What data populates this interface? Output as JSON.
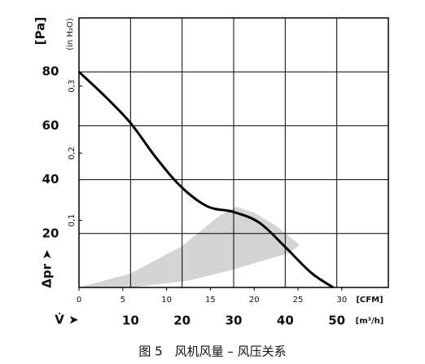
{
  "chart_data": {
    "type": "line",
    "x": [
      0,
      5,
      10,
      15,
      20,
      25,
      30,
      35,
      40,
      45,
      49.3
    ],
    "series": [
      {
        "color": "#000000",
        "values": [
          80,
          71,
          61,
          48,
          37,
          30,
          28,
          24,
          15,
          5.5,
          0
        ]
      }
    ],
    "xlim": [
      0,
      60
    ],
    "xticks": [
      10,
      20,
      30,
      40,
      50
    ],
    "xlabel": "[m³/h]",
    "xarrow": "V̇ ➤",
    "ylim": [
      0,
      100
    ],
    "yticks": [
      20,
      40,
      60,
      80
    ],
    "ylabel": "[Pa]",
    "yarrow": "Δpr ➤",
    "x2lim": [
      0,
      35.31
    ],
    "x2ticks": [
      0,
      5,
      10,
      15,
      20,
      25,
      30
    ],
    "x2label": "[CFM]",
    "y2lim": [
      0,
      0.4015
    ],
    "y2ticks": [
      {
        "value": 0.1,
        "label": "0,1"
      },
      {
        "value": 0.2,
        "label": "0,2"
      },
      {
        "value": 0.3,
        "label": "0,3"
      }
    ],
    "y2label": "(in H₂O)",
    "grid": true,
    "caption": "图 5　风机风量 – 风压关系"
  }
}
